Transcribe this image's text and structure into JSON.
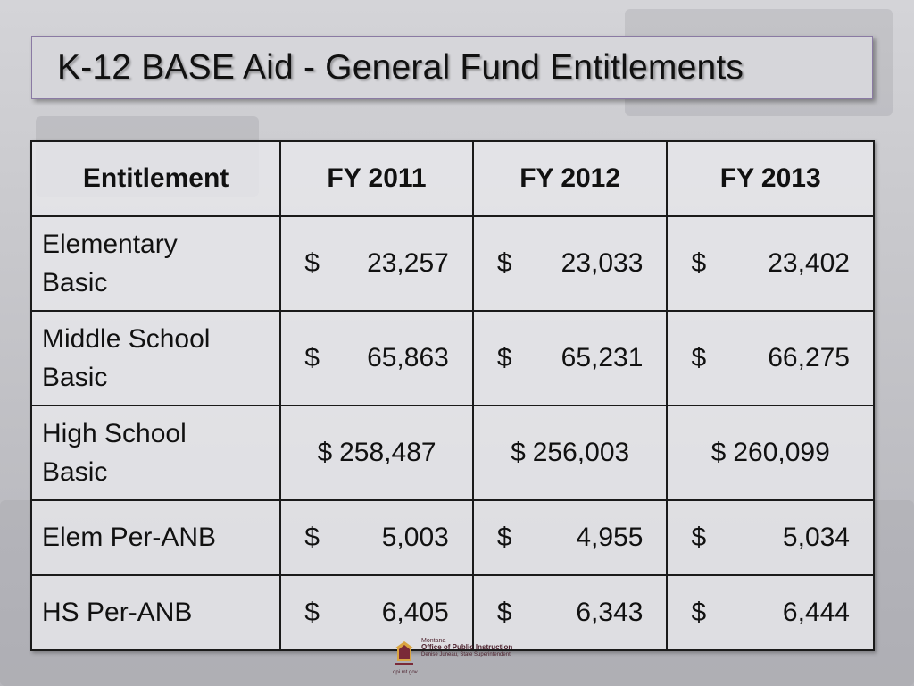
{
  "slide": {
    "title": "K-12 BASE Aid - General Fund Entitlements"
  },
  "table": {
    "headers": [
      "Entitlement",
      "FY 2011",
      "FY 2012",
      "FY 2013"
    ],
    "rows": [
      {
        "label_line1": "Elementary",
        "label_line2": "Basic",
        "values": [
          {
            "currency": "$",
            "amount": "23,257"
          },
          {
            "currency": "$",
            "amount": "23,033"
          },
          {
            "currency": "$",
            "amount": "23,402"
          }
        ]
      },
      {
        "label_line1": "Middle School",
        "label_line2": "Basic",
        "values": [
          {
            "currency": "$",
            "amount": "65,863"
          },
          {
            "currency": "$",
            "amount": "65,231"
          },
          {
            "currency": "$",
            "amount": "66,275"
          }
        ]
      },
      {
        "label_line1": "High School",
        "label_line2": "Basic",
        "values": [
          {
            "currency": "$",
            "amount": "258,487"
          },
          {
            "currency": "$",
            "amount": "256,003"
          },
          {
            "currency": "$",
            "amount": "260,099"
          }
        ]
      },
      {
        "label_line1": "Elem Per-ANB",
        "label_line2": "",
        "values": [
          {
            "currency": "$",
            "amount": "5,003"
          },
          {
            "currency": "$",
            "amount": "4,955"
          },
          {
            "currency": "$",
            "amount": "5,034"
          }
        ]
      },
      {
        "label_line1": "HS Per-ANB",
        "label_line2": "",
        "values": [
          {
            "currency": "$",
            "amount": "6,405"
          },
          {
            "currency": "$",
            "amount": "6,343"
          },
          {
            "currency": "$",
            "amount": "6,444"
          }
        ]
      }
    ]
  },
  "logo": {
    "line1": "Montana",
    "line2": "Office of Public Instruction",
    "line3": "Denise Juneau, State Superintendent",
    "url": "opi.mt.gov",
    "icon": "montana-opi-logo-icon"
  },
  "colors": {
    "background": "#c9c9cc",
    "title_border": "#8a7aa3",
    "logo_maroon": "#4a1e2a",
    "logo_gold": "#d9a441"
  }
}
